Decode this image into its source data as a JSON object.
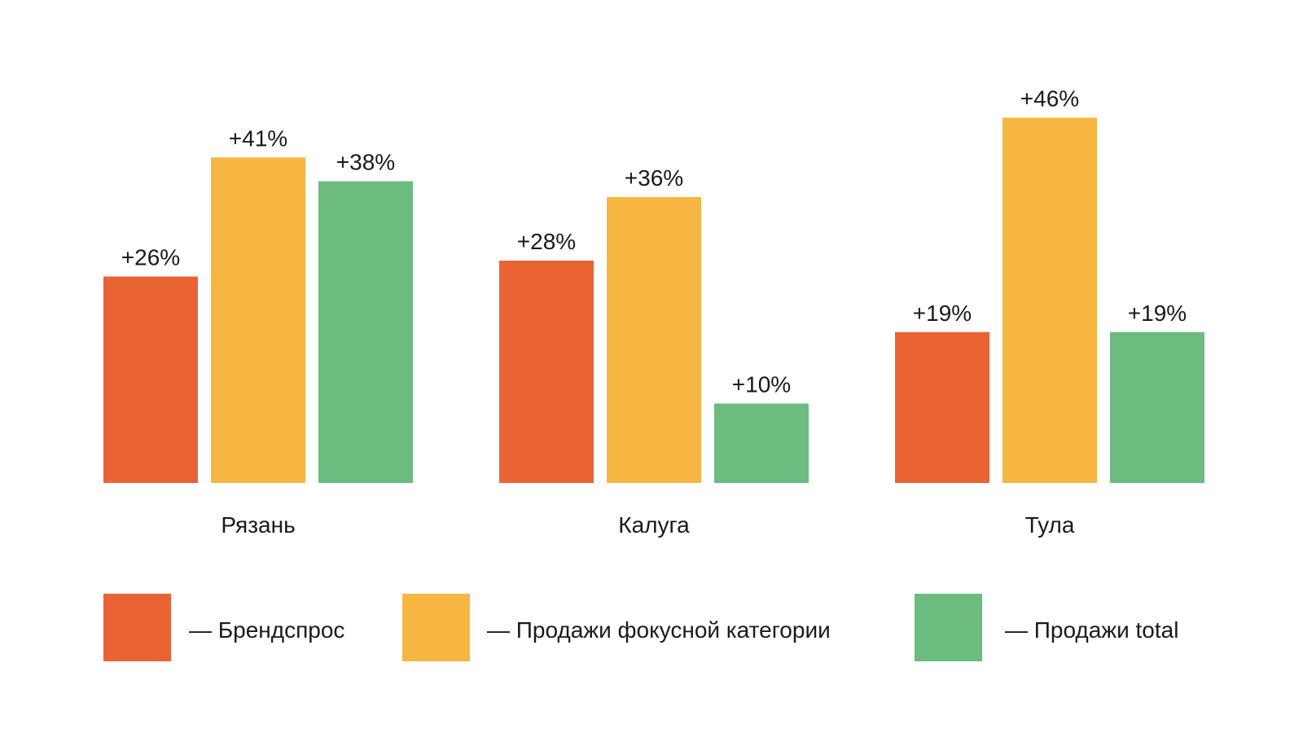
{
  "chart_data": {
    "type": "bar",
    "title": "",
    "xlabel": "",
    "ylabel": "",
    "ylim": [
      0,
      50
    ],
    "grid": false,
    "legend_position": "bottom",
    "categories": [
      "Рязань",
      "Калуга",
      "Тула"
    ],
    "series": [
      {
        "name": "— Брендспрос",
        "color": "#EA6333",
        "values": [
          26,
          28,
          19
        ],
        "labels": [
          "+26%",
          "+28%",
          "+19%"
        ]
      },
      {
        "name": "— Продажи фокусной категории",
        "color": "#F7B641",
        "values": [
          41,
          36,
          46
        ],
        "labels": [
          "+41%",
          "+36%",
          "+46%"
        ]
      },
      {
        "name": "— Продажи total",
        "color": "#6BBC7E",
        "values": [
          38,
          10,
          19
        ],
        "labels": [
          "+38%",
          "+10%",
          "+19%"
        ]
      }
    ]
  }
}
